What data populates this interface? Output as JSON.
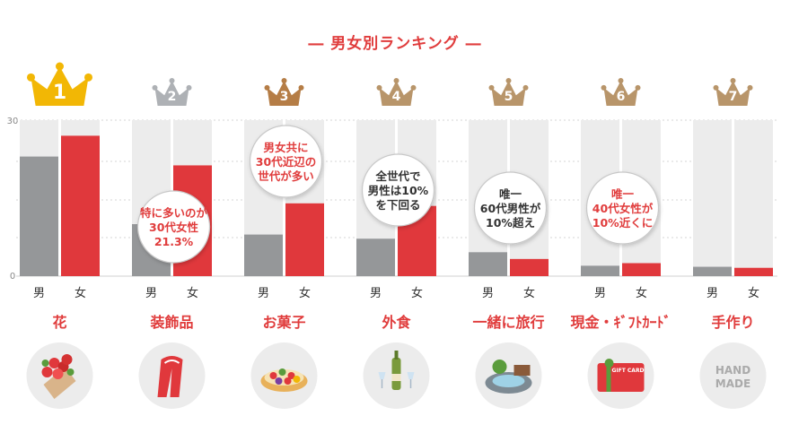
{
  "title": "― 男女別ランキング ―",
  "colors": {
    "male": "#959799",
    "female": "#e0383c",
    "track": "#ececec",
    "label_red": "#e03c3c",
    "crown_gold": "#f2b705",
    "crown_silver": "#aeb1b5",
    "crown_bronze": "#b57d46",
    "crown_other": "#b8956a",
    "circle": "#ececec",
    "bubble_border": "#c8c8c8"
  },
  "chart_data": {
    "type": "bar",
    "ylim": [
      0,
      30
    ],
    "y_ticks": [
      "0",
      "30"
    ],
    "series_labels": [
      "男",
      "女"
    ],
    "categories": [
      {
        "rank": "1",
        "crown": "gold-crown-icon",
        "label": "花",
        "icon": "flower-bouquet-icon",
        "values": [
          23,
          27
        ]
      },
      {
        "rank": "2",
        "crown": "silver-crown-icon",
        "label": "装飾品",
        "icon": "scarf-icon",
        "values": [
          10,
          21.3
        ]
      },
      {
        "rank": "3",
        "crown": "bronze-crown-icon",
        "label": "お菓子",
        "icon": "fruit-tart-icon",
        "values": [
          8,
          14
        ]
      },
      {
        "rank": "4",
        "crown": "crown-icon",
        "label": "外食",
        "icon": "wine-dinner-icon",
        "values": [
          7.2,
          13.5
        ]
      },
      {
        "rank": "5",
        "crown": "crown-icon",
        "label": "一緒に旅行",
        "icon": "hot-spring-icon",
        "values": [
          4.6,
          3.3
        ]
      },
      {
        "rank": "6",
        "crown": "crown-icon",
        "label": "現金・ｷﾞﾌﾄｶｰﾄﾞ",
        "icon": "gift-card-icon",
        "values": [
          2,
          2.5
        ]
      },
      {
        "rank": "7",
        "crown": "crown-icon",
        "label": "手作り",
        "icon": "handmade-icon",
        "values": [
          1.8,
          1.6
        ]
      }
    ],
    "annotations": [
      {
        "col": 1,
        "lines": [
          "特に多いのが",
          "30代女性",
          "21.3%"
        ],
        "style": "red"
      },
      {
        "col": 2,
        "lines": [
          "男女共に",
          "30代近辺の",
          "世代が多い"
        ],
        "style": "red"
      },
      {
        "col": 3,
        "lines": [
          "全世代で",
          "男性は10%",
          "を下回る"
        ],
        "style": "gray"
      },
      {
        "col": 4,
        "lines": [
          "唯一",
          "60代男性が",
          "10%超え"
        ],
        "style": "gray"
      },
      {
        "col": 5,
        "lines": [
          "唯一",
          "40代女性が",
          "10%近くに"
        ],
        "style": "red"
      }
    ],
    "icon_texts": {
      "gift_card": "GIFT CARD",
      "handmade": [
        "HAND",
        "MADE"
      ]
    }
  }
}
